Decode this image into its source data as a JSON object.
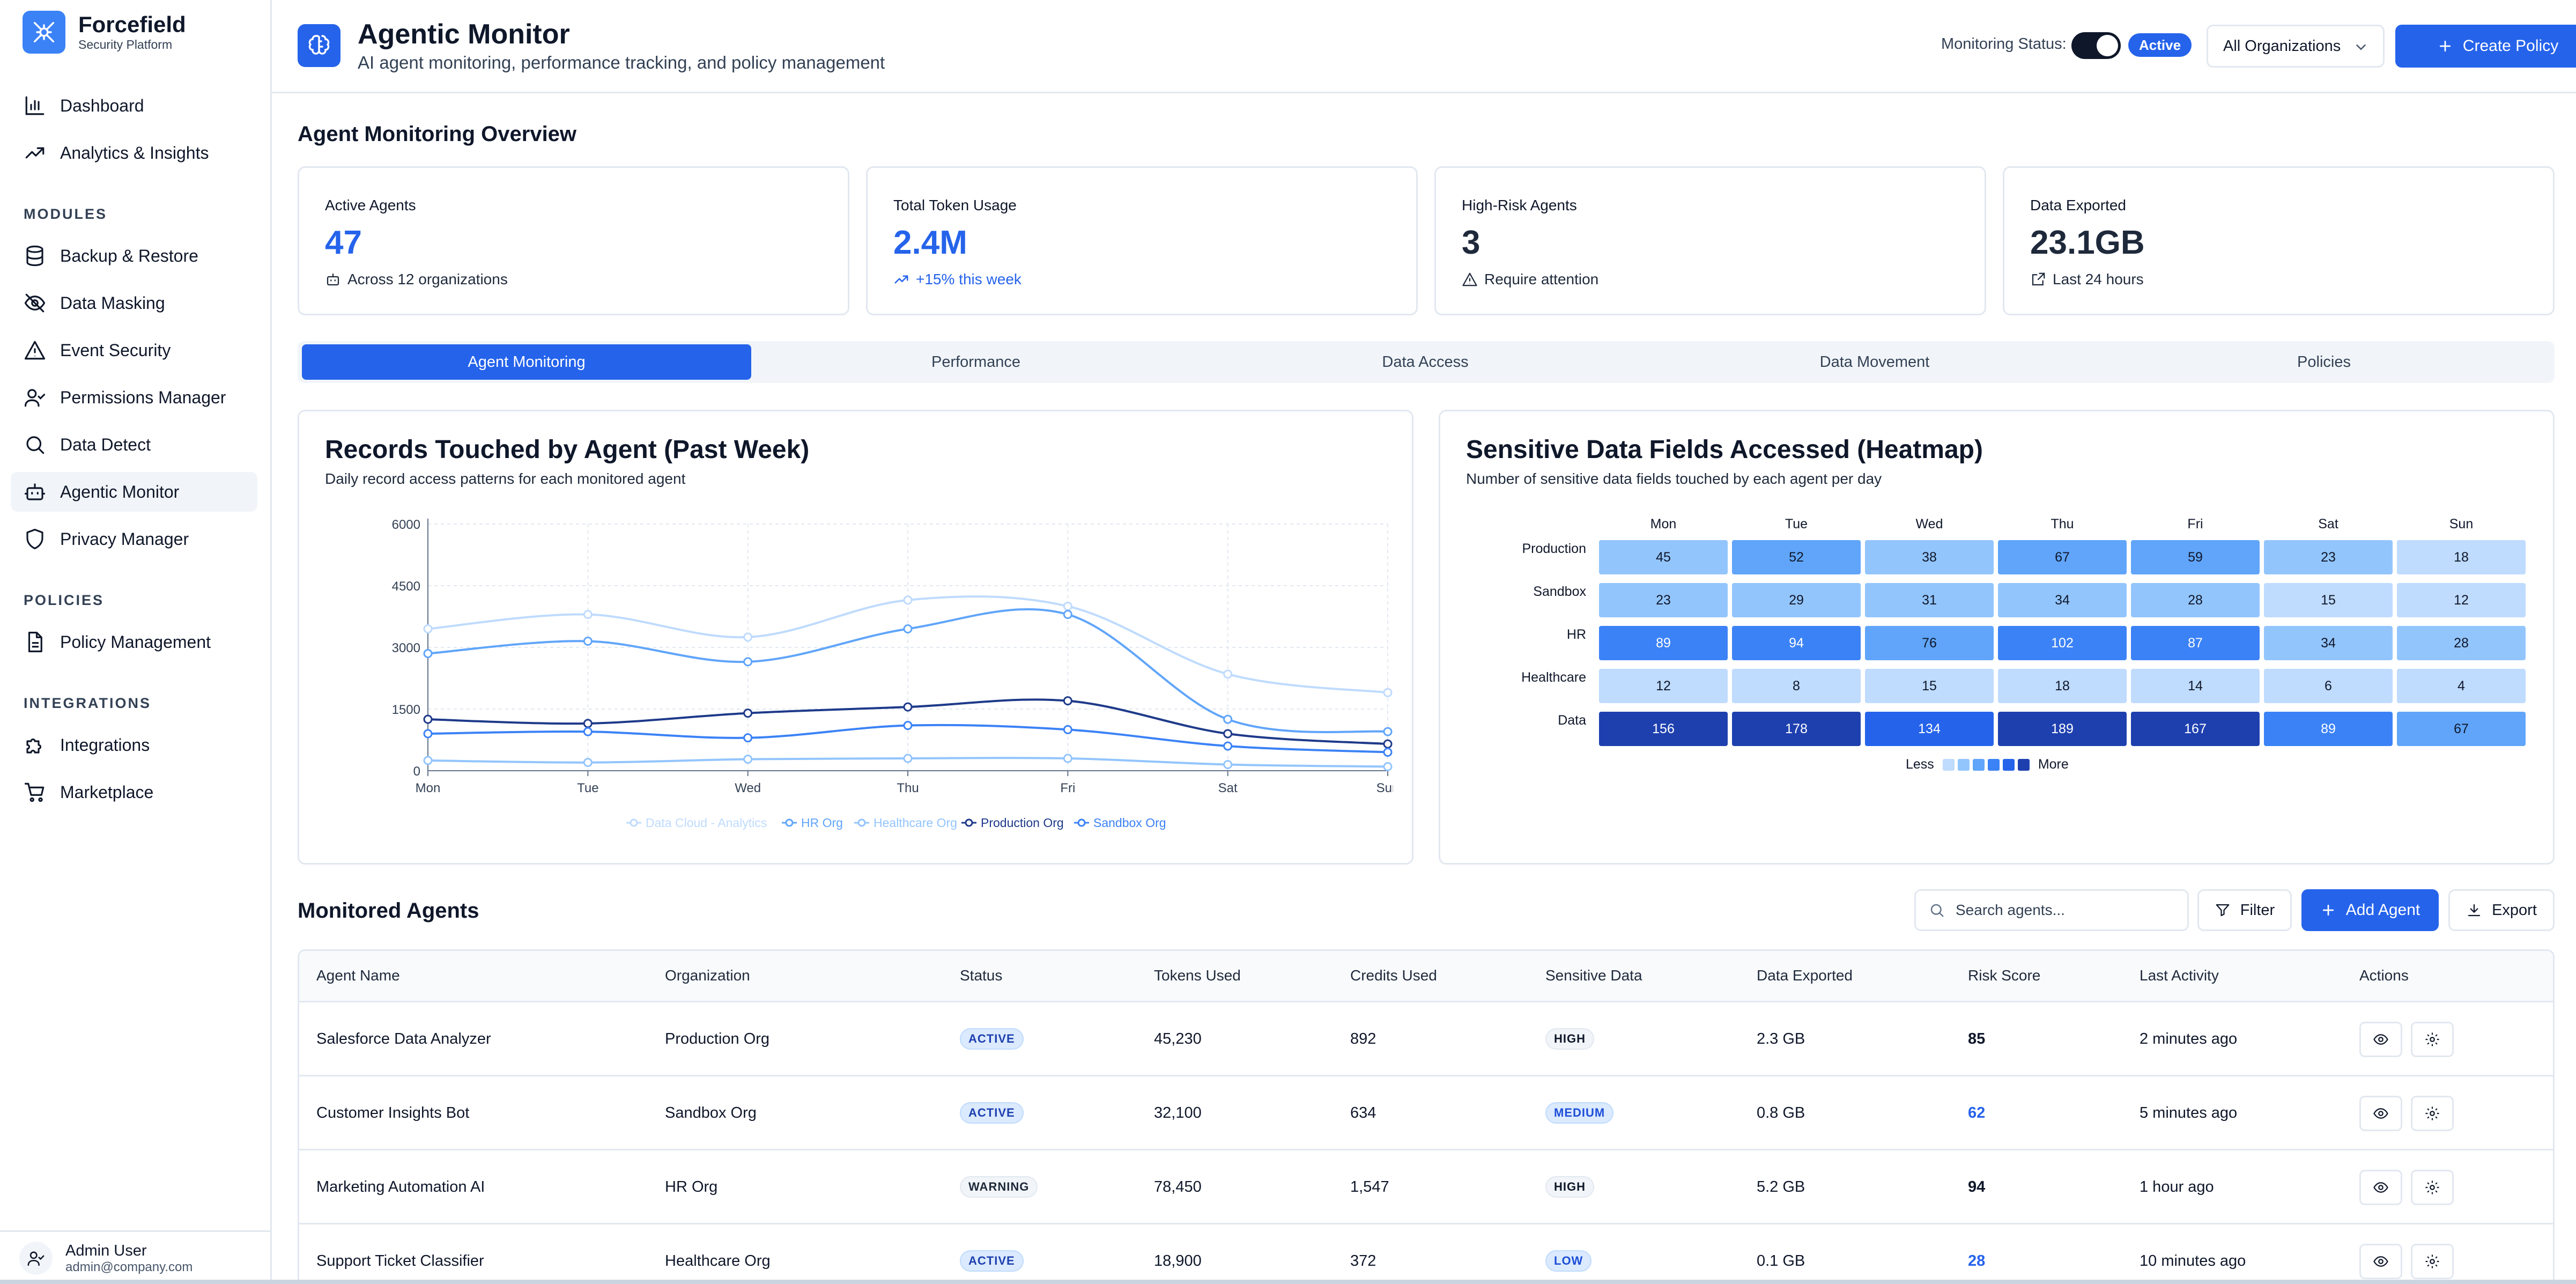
{
  "brand": {
    "name": "Forcefield",
    "subtitle": "Security Platform"
  },
  "sidebar": {
    "top_items": [
      {
        "label": "Dashboard",
        "icon": "bar-chart-icon"
      },
      {
        "label": "Analytics & Insights",
        "icon": "trending-up-icon"
      }
    ],
    "sections": [
      {
        "title": "MODULES",
        "items": [
          {
            "label": "Backup & Restore",
            "icon": "database-icon"
          },
          {
            "label": "Data Masking",
            "icon": "eye-off-icon"
          },
          {
            "label": "Event Security",
            "icon": "warning-icon"
          },
          {
            "label": "Permissions Manager",
            "icon": "user-check-icon"
          },
          {
            "label": "Data Detect",
            "icon": "search-icon"
          },
          {
            "label": "Agentic Monitor",
            "icon": "bot-icon",
            "active": true
          },
          {
            "label": "Privacy Manager",
            "icon": "shield-icon"
          }
        ]
      },
      {
        "title": "POLICIES",
        "items": [
          {
            "label": "Policy Management",
            "icon": "document-icon"
          }
        ]
      },
      {
        "title": "INTEGRATIONS",
        "items": [
          {
            "label": "Integrations",
            "icon": "puzzle-icon"
          },
          {
            "label": "Marketplace",
            "icon": "cart-icon"
          }
        ]
      }
    ],
    "user": {
      "name": "Admin User",
      "email": "admin@company.com"
    }
  },
  "header": {
    "title": "Agentic Monitor",
    "subtitle": "AI agent monitoring, performance tracking, and policy management",
    "monitoring_label": "Monitoring Status:",
    "monitoring_on": true,
    "status_badge": "Active",
    "org_select": "All Organizations",
    "create_button": "Create Policy"
  },
  "overview": {
    "title": "Agent Monitoring Overview",
    "cards": [
      {
        "label": "Active Agents",
        "value": "47",
        "note": "Across 12 organizations",
        "icon": "bot-icon",
        "accent": "blue"
      },
      {
        "label": "Total Token Usage",
        "value": "2.4M",
        "note": "+15% this week",
        "icon": "trending-up-icon",
        "accent": "blue"
      },
      {
        "label": "High-Risk Agents",
        "value": "3",
        "note": "Require attention",
        "icon": "warning-icon",
        "accent": "dark"
      },
      {
        "label": "Data Exported",
        "value": "23.1GB",
        "note": "Last 24 hours",
        "icon": "external-link-icon",
        "accent": "dark"
      }
    ]
  },
  "tabs": [
    {
      "label": "Agent Monitoring",
      "active": true
    },
    {
      "label": "Performance"
    },
    {
      "label": "Data Access"
    },
    {
      "label": "Data Movement"
    },
    {
      "label": "Policies"
    }
  ],
  "records_chart": {
    "title": "Records Touched by Agent (Past Week)",
    "subtitle": "Daily record access patterns for each monitored agent"
  },
  "chart_data": {
    "type": "line",
    "categories": [
      "Mon",
      "Tue",
      "Wed",
      "Thu",
      "Fri",
      "Sat",
      "Sun"
    ],
    "ylim": [
      0,
      6000
    ],
    "yticks": [
      0,
      1500,
      3000,
      4500,
      6000
    ],
    "grid": true,
    "legend": "bottom",
    "series": [
      {
        "name": "Data Cloud - Analytics",
        "color": "#bfdbfe",
        "values": [
          3450,
          3800,
          3250,
          4150,
          4000,
          2350,
          1900
        ]
      },
      {
        "name": "HR Org",
        "color": "#60a5fa",
        "values": [
          2850,
          3150,
          2650,
          3450,
          3800,
          1250,
          950
        ]
      },
      {
        "name": "Healthcare Org",
        "color": "#93c5fd",
        "values": [
          250,
          200,
          280,
          300,
          300,
          150,
          100
        ]
      },
      {
        "name": "Production Org",
        "color": "#1e3a8a",
        "values": [
          1250,
          1150,
          1400,
          1550,
          1700,
          900,
          650
        ]
      },
      {
        "name": "Sandbox Org",
        "color": "#3b82f6",
        "values": [
          900,
          950,
          800,
          1100,
          1000,
          600,
          450
        ]
      }
    ]
  },
  "heatmap": {
    "title": "Sensitive Data Fields Accessed (Heatmap)",
    "subtitle": "Number of sensitive data fields touched by each agent per day",
    "columns": [
      "Mon",
      "Tue",
      "Wed",
      "Thu",
      "Fri",
      "Sat",
      "Sun"
    ],
    "rows": [
      {
        "label": "Production",
        "values": [
          45,
          52,
          38,
          67,
          59,
          23,
          18
        ]
      },
      {
        "label": "Sandbox",
        "values": [
          23,
          29,
          31,
          34,
          28,
          15,
          12
        ]
      },
      {
        "label": "HR",
        "values": [
          89,
          94,
          76,
          102,
          87,
          34,
          28
        ]
      },
      {
        "label": "Healthcare",
        "values": [
          12,
          8,
          15,
          18,
          14,
          6,
          4
        ]
      },
      {
        "label": "Data",
        "values": [
          156,
          178,
          134,
          189,
          167,
          89,
          67
        ]
      }
    ],
    "legend_less": "Less",
    "legend_more": "More",
    "scale_colors": [
      "#dbeafe",
      "#bfdbfe",
      "#93c5fd",
      "#60a5fa",
      "#3b82f6",
      "#2563eb",
      "#1e40af"
    ]
  },
  "agents": {
    "title": "Monitored Agents",
    "search_placeholder": "Search agents...",
    "filter_button": "Filter",
    "add_button": "Add Agent",
    "export_button": "Export",
    "columns": [
      "Agent Name",
      "Organization",
      "Status",
      "Tokens Used",
      "Credits Used",
      "Sensitive Data",
      "Data Exported",
      "Risk Score",
      "Last Activity",
      "Actions"
    ],
    "rows": [
      {
        "name": "Salesforce Data Analyzer",
        "org": "Production Org",
        "status": "ACTIVE",
        "tokens": "45,230",
        "credits": "892",
        "sensitive": "HIGH",
        "exported": "2.3 GB",
        "risk": "85",
        "activity": "2 minutes ago"
      },
      {
        "name": "Customer Insights Bot",
        "org": "Sandbox Org",
        "status": "ACTIVE",
        "tokens": "32,100",
        "credits": "634",
        "sensitive": "MEDIUM",
        "exported": "0.8 GB",
        "risk": "62",
        "activity": "5 minutes ago"
      },
      {
        "name": "Marketing Automation AI",
        "org": "HR Org",
        "status": "WARNING",
        "tokens": "78,450",
        "credits": "1,547",
        "sensitive": "HIGH",
        "exported": "5.2 GB",
        "risk": "94",
        "activity": "1 hour ago"
      },
      {
        "name": "Support Ticket Classifier",
        "org": "Healthcare Org",
        "status": "ACTIVE",
        "tokens": "18,900",
        "credits": "372",
        "sensitive": "LOW",
        "exported": "0.1 GB",
        "risk": "28",
        "activity": "10 minutes ago"
      }
    ]
  }
}
